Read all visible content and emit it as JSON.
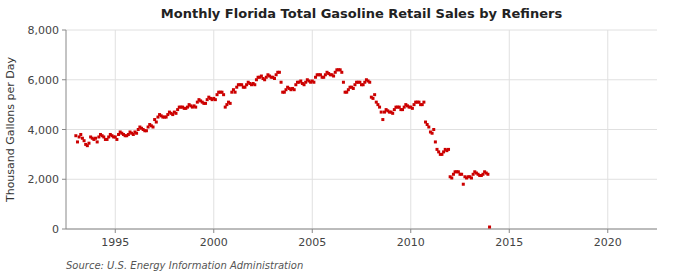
{
  "chart_data": {
    "type": "scatter",
    "title": "Monthly Florida Total Gasoline Retail Sales by Refiners",
    "y_label": "Thousand Gallons per Day",
    "annotations": [
      "Source: U.S. Energy Information Administration"
    ],
    "color": "#cc0000",
    "marker": "square",
    "grid": true,
    "xlim": [
      1992.5,
      2022.5
    ],
    "ylim": [
      0,
      8000
    ],
    "xticks": [
      1995,
      2000,
      2005,
      2010,
      2015,
      2020
    ],
    "yticks": [
      0,
      {
        "value": 2000,
        "label": "2,000"
      },
      {
        "value": 4000,
        "label": "4,000"
      },
      {
        "value": 6000,
        "label": "6,000"
      },
      {
        "value": 8000,
        "label": "8,000"
      }
    ],
    "x": [
      1993.0,
      1993.083,
      1993.167,
      1993.25,
      1993.333,
      1993.417,
      1993.5,
      1993.583,
      1993.667,
      1993.75,
      1993.833,
      1993.917,
      1994.0,
      1994.083,
      1994.167,
      1994.25,
      1994.333,
      1994.417,
      1994.5,
      1994.583,
      1994.667,
      1994.75,
      1994.833,
      1994.917,
      1995.0,
      1995.083,
      1995.167,
      1995.25,
      1995.333,
      1995.417,
      1995.5,
      1995.583,
      1995.667,
      1995.75,
      1995.833,
      1995.917,
      1996.0,
      1996.083,
      1996.167,
      1996.25,
      1996.333,
      1996.417,
      1996.5,
      1996.583,
      1996.667,
      1996.75,
      1996.833,
      1996.917,
      1997.0,
      1997.083,
      1997.167,
      1997.25,
      1997.333,
      1997.417,
      1997.5,
      1997.583,
      1997.667,
      1997.75,
      1997.833,
      1997.917,
      1998.0,
      1998.083,
      1998.167,
      1998.25,
      1998.333,
      1998.417,
      1998.5,
      1998.583,
      1998.667,
      1998.75,
      1998.833,
      1998.917,
      1999.0,
      1999.083,
      1999.167,
      1999.25,
      1999.333,
      1999.417,
      1999.5,
      1999.583,
      1999.667,
      1999.75,
      1999.833,
      1999.917,
      2000.0,
      2000.083,
      2000.167,
      2000.25,
      2000.333,
      2000.417,
      2000.5,
      2000.583,
      2000.667,
      2000.75,
      2000.833,
      2000.917,
      2001.0,
      2001.083,
      2001.167,
      2001.25,
      2001.333,
      2001.417,
      2001.5,
      2001.583,
      2001.667,
      2001.75,
      2001.833,
      2001.917,
      2002.0,
      2002.083,
      2002.167,
      2002.25,
      2002.333,
      2002.417,
      2002.5,
      2002.583,
      2002.667,
      2002.75,
      2002.833,
      2002.917,
      2003.0,
      2003.083,
      2003.167,
      2003.25,
      2003.333,
      2003.417,
      2003.5,
      2003.583,
      2003.667,
      2003.75,
      2003.833,
      2003.917,
      2004.0,
      2004.083,
      2004.167,
      2004.25,
      2004.333,
      2004.417,
      2004.5,
      2004.583,
      2004.667,
      2004.75,
      2004.833,
      2004.917,
      2005.0,
      2005.083,
      2005.167,
      2005.25,
      2005.333,
      2005.417,
      2005.5,
      2005.583,
      2005.667,
      2005.75,
      2005.833,
      2005.917,
      2006.0,
      2006.083,
      2006.167,
      2006.25,
      2006.333,
      2006.417,
      2006.5,
      2006.583,
      2006.667,
      2006.75,
      2006.833,
      2006.917,
      2007.0,
      2007.083,
      2007.167,
      2007.25,
      2007.333,
      2007.417,
      2007.5,
      2007.583,
      2007.667,
      2007.75,
      2007.833,
      2007.917,
      2008.0,
      2008.083,
      2008.167,
      2008.25,
      2008.333,
      2008.417,
      2008.5,
      2008.583,
      2008.667,
      2008.75,
      2008.833,
      2008.917,
      2009.0,
      2009.083,
      2009.167,
      2009.25,
      2009.333,
      2009.417,
      2009.5,
      2009.583,
      2009.667,
      2009.75,
      2009.833,
      2009.917,
      2010.0,
      2010.083,
      2010.167,
      2010.25,
      2010.333,
      2010.417,
      2010.5,
      2010.583,
      2010.667,
      2010.75,
      2010.833,
      2010.917,
      2011.0,
      2011.083,
      2011.167,
      2011.25,
      2011.333,
      2011.417,
      2011.5,
      2011.583,
      2011.667,
      2011.75,
      2011.833,
      2011.917,
      2012.0,
      2012.083,
      2012.167,
      2012.25,
      2012.333,
      2012.417,
      2012.5,
      2012.583,
      2012.667,
      2012.75,
      2012.833,
      2012.917,
      2013.0,
      2013.083,
      2013.167,
      2013.25,
      2013.333,
      2013.417,
      2013.5,
      2013.583,
      2013.667,
      2013.75,
      2013.833,
      2013.917,
      2014.0
    ],
    "values": [
      3750,
      3500,
      3700,
      3800,
      3650,
      3550,
      3400,
      3350,
      3450,
      3700,
      3650,
      3600,
      3650,
      3500,
      3700,
      3800,
      3750,
      3700,
      3600,
      3600,
      3700,
      3800,
      3750,
      3700,
      3700,
      3600,
      3800,
      3900,
      3850,
      3800,
      3750,
      3750,
      3800,
      3900,
      3850,
      3800,
      3900,
      3850,
      4000,
      4100,
      4050,
      4000,
      3950,
      3950,
      4100,
      4200,
      4150,
      4100,
      4400,
      4300,
      4500,
      4600,
      4550,
      4500,
      4500,
      4500,
      4600,
      4700,
      4650,
      4600,
      4700,
      4650,
      4800,
      4900,
      4900,
      4900,
      4850,
      4850,
      4900,
      5000,
      4950,
      4900,
      4950,
      4900,
      5100,
      5200,
      5150,
      5100,
      5050,
      5050,
      5200,
      5300,
      5250,
      5200,
      5250,
      5200,
      5400,
      5500,
      5500,
      5500,
      5400,
      4900,
      5000,
      5100,
      5050,
      5500,
      5600,
      5500,
      5700,
      5800,
      5800,
      5800,
      5700,
      5700,
      5800,
      5900,
      5850,
      5800,
      5850,
      5800,
      6000,
      6100,
      6100,
      6150,
      6050,
      6000,
      6100,
      6200,
      6150,
      6100,
      6100,
      6050,
      6200,
      6300,
      6300,
      5900,
      5500,
      5500,
      5600,
      5700,
      5650,
      5600,
      5650,
      5600,
      5800,
      5900,
      5900,
      5950,
      5850,
      5800,
      5900,
      6000,
      5950,
      5900,
      5950,
      5900,
      6100,
      6200,
      6200,
      6200,
      6100,
      6100,
      6200,
      6300,
      6250,
      6200,
      6200,
      6150,
      6300,
      6400,
      6400,
      6400,
      6300,
      5900,
      5500,
      5500,
      5600,
      5700,
      5700,
      5650,
      5800,
      5900,
      5900,
      5900,
      5800,
      5800,
      5900,
      6000,
      5950,
      5900,
      5300,
      5250,
      5400,
      5100,
      5000,
      4900,
      4700,
      4400,
      4700,
      4800,
      4750,
      4700,
      4700,
      4650,
      4800,
      4900,
      4900,
      4900,
      4800,
      4800,
      4900,
      5000,
      4950,
      4900,
      4900,
      4850,
      5000,
      5100,
      5100,
      5100,
      5000,
      5000,
      5100,
      4300,
      4200,
      4100,
      3900,
      3850,
      4000,
      3500,
      3200,
      3100,
      3000,
      3000,
      3100,
      3200,
      3150,
      3200,
      2100,
      2050,
      2200,
      2300,
      2300,
      2300,
      2200,
      2200,
      1800,
      2100,
      2050,
      2100,
      2100,
      2050,
      2200,
      2300,
      2250,
      2200,
      2150,
      2150,
      2200,
      2300,
      2250,
      2200,
      80
    ]
  }
}
